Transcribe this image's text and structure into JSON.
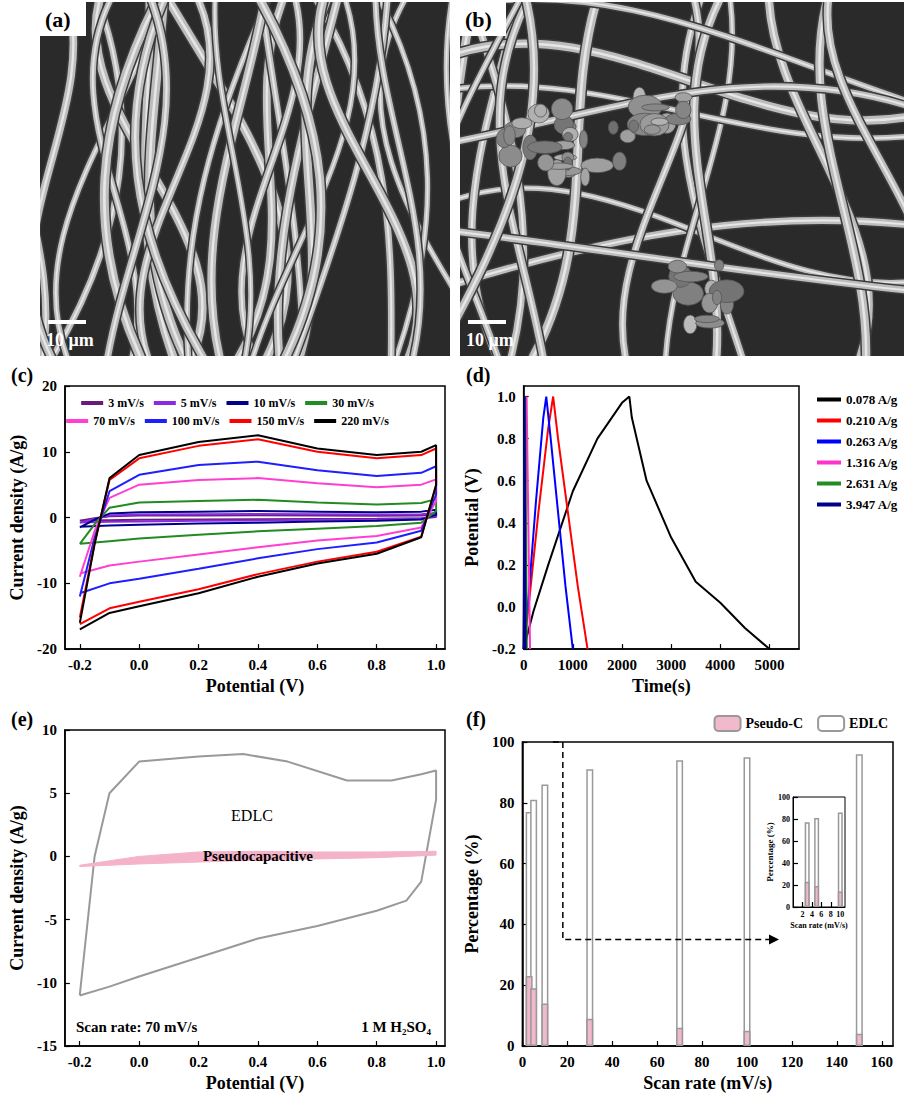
{
  "images": [
    {
      "label": "(a)",
      "scale_bar": "10 μm"
    },
    {
      "label": "(b)",
      "scale_bar": "10 μm"
    }
  ],
  "chart_data": [
    {
      "type": "line",
      "title": "(c)",
      "x_label": "Potential (V)",
      "y_label": "Current density (A/g)",
      "x": [
        -0.2,
        -0.15,
        -0.1,
        0,
        0.2,
        0.4,
        0.6,
        0.8,
        0.95,
        1.0,
        1.0,
        0.95,
        0.8,
        0.6,
        0.4,
        0.2,
        0,
        -0.1,
        -0.2
      ],
      "series": [
        {
          "name": "3 mV/s",
          "color": "#6a1b7a",
          "values": [
            -0.5,
            -0.1,
            0.2,
            0.3,
            0.32,
            0.35,
            0.3,
            0.28,
            0.3,
            0.45,
            0.1,
            -0.1,
            -0.2,
            -0.22,
            -0.27,
            -0.3,
            -0.35,
            -0.4,
            -0.45
          ]
        },
        {
          "name": "5 mV/s",
          "color": "#8a2be2",
          "values": [
            -0.8,
            -0.2,
            0.3,
            0.45,
            0.5,
            0.55,
            0.5,
            0.45,
            0.5,
            0.7,
            0.2,
            -0.15,
            -0.3,
            -0.35,
            -0.45,
            -0.5,
            -0.6,
            -0.65,
            -0.75
          ]
        },
        {
          "name": "10 mV/s",
          "color": "#00008b",
          "values": [
            -1.5,
            -0.3,
            0.6,
            0.8,
            0.9,
            1,
            0.9,
            0.8,
            0.9,
            1.2,
            0.4,
            -0.3,
            -0.5,
            -0.6,
            -0.8,
            -0.9,
            -1.1,
            -1.2,
            -1.4
          ]
        },
        {
          "name": "30 mV/s",
          "color": "#228b22",
          "values": [
            -4,
            -1,
            1.5,
            2.3,
            2.5,
            2.7,
            2.3,
            2,
            2.2,
            2.8,
            1,
            -0.8,
            -1.3,
            -1.7,
            -2.1,
            -2.6,
            -3.2,
            -3.6,
            -4
          ]
        },
        {
          "name": "70 mV/s",
          "color": "#ff3fd0",
          "values": [
            -9,
            -2,
            3,
            5,
            5.7,
            6,
            5.2,
            4.6,
            5,
            5.8,
            2.5,
            -1.5,
            -2.8,
            -3.5,
            -4.5,
            -5.6,
            -6.7,
            -7.3,
            -8.5
          ]
        },
        {
          "name": "100 mV/s",
          "color": "#1e1eff",
          "values": [
            -12,
            -3,
            4,
            6.5,
            8,
            8.5,
            7.2,
            6.3,
            6.8,
            7.8,
            3.5,
            -2,
            -3.8,
            -4.8,
            -6.2,
            -7.8,
            -9.3,
            -10,
            -11.5
          ]
        },
        {
          "name": "150 mV/s",
          "color": "#ff0000",
          "values": [
            -15.2,
            -3.8,
            5.7,
            9,
            10.9,
            11.9,
            10,
            9,
            9.5,
            10.5,
            4.8,
            -2.9,
            -5.2,
            -6.7,
            -8.6,
            -10.9,
            -12.8,
            -13.8,
            -16.2
          ]
        },
        {
          "name": "220 mV/s",
          "color": "#000000",
          "values": [
            -16,
            -4,
            6,
            9.5,
            11.5,
            12.5,
            10.5,
            9.5,
            10,
            11,
            5,
            -3,
            -5.5,
            -7,
            -9,
            -11.5,
            -13.5,
            -14.5,
            -17
          ]
        }
      ],
      "xlim": [
        -0.25,
        1.03
      ],
      "xticks": [
        -0.2,
        {
          "value": 0,
          "label": "0.0"
        },
        0.2,
        0.4,
        0.6,
        0.8,
        {
          "value": 1,
          "label": "1.0"
        }
      ],
      "ylim": [
        -20,
        20
      ],
      "yticks": [
        -20,
        -10,
        0,
        10,
        20
      ],
      "legend": "top",
      "grid": false
    },
    {
      "type": "line",
      "title": "(d)",
      "x_label": "Time(s)",
      "y_label": "Potential (V)",
      "series": [
        {
          "name": "0.078 A/g",
          "color": "#000000",
          "x": [
            0,
            200,
            500,
            1000,
            1500,
            2000,
            2150,
            2200,
            2500,
            3000,
            3500,
            4000,
            4500,
            5000
          ],
          "values": [
            -0.2,
            -0.02,
            0.2,
            0.55,
            0.8,
            0.97,
            1.0,
            0.9,
            0.6,
            0.33,
            0.12,
            0.02,
            -0.1,
            -0.2
          ]
        },
        {
          "name": "0.210 A/g",
          "color": "#ff0000",
          "x": [
            0,
            100,
            300,
            500,
            600,
            700,
            900,
            1100,
            1300
          ],
          "values": [
            -0.2,
            0,
            0.45,
            0.85,
            1.0,
            0.8,
            0.45,
            0.1,
            -0.2
          ]
        },
        {
          "name": "0.263 A/g",
          "color": "#0000ff",
          "x": [
            0,
            100,
            250,
            400,
            460,
            550,
            700,
            850,
            1000
          ],
          "values": [
            -0.2,
            0.05,
            0.5,
            0.9,
            1.0,
            0.8,
            0.45,
            0.1,
            -0.2
          ]
        },
        {
          "name": "1.316 A/g",
          "color": "#ff33cc",
          "x": [
            0,
            60,
            130
          ],
          "values": [
            -0.2,
            1.0,
            -0.2
          ]
        },
        {
          "name": "2.631 A/g",
          "color": "#228b22",
          "x": [
            0,
            30,
            65
          ],
          "values": [
            -0.2,
            1.0,
            -0.2
          ]
        },
        {
          "name": "3.947 A/g",
          "color": "#00008b",
          "x": [
            0,
            20,
            40
          ],
          "values": [
            -0.2,
            1.0,
            -0.2
          ]
        }
      ],
      "xlim": [
        0,
        5600
      ],
      "xticks": [
        0,
        1000,
        2000,
        3000,
        4000,
        5000
      ],
      "ylim": [
        -0.2,
        1.05
      ],
      "yticks": [
        -0.2,
        {
          "value": 0,
          "label": "0.0"
        },
        0.2,
        0.4,
        0.6,
        0.8,
        {
          "value": 1,
          "label": "1.0"
        }
      ],
      "legend": "right",
      "grid": false
    },
    {
      "type": "line",
      "title": "(e)",
      "x_label": "Potential (V)",
      "y_label": "Current density (A/g)",
      "annotations": [
        "Scan rate: 70 mV/s",
        "1 M H₂SO₄"
      ],
      "series": [
        {
          "name": "EDLC",
          "type": "line",
          "color": "#999999",
          "x": [
            -0.2,
            -0.15,
            -0.1,
            0,
            0.2,
            0.35,
            0.5,
            0.7,
            0.85,
            0.95,
            1.0,
            1.0,
            0.95,
            0.9,
            0.8,
            0.6,
            0.4,
            0.2,
            0,
            -0.1,
            -0.2
          ],
          "values": [
            -11,
            0,
            5,
            7.5,
            7.9,
            8.1,
            7.5,
            6,
            6,
            6.5,
            6.8,
            4.5,
            -2,
            -3.5,
            -4.3,
            -5.5,
            -6.5,
            -8,
            -9.5,
            -10.3,
            -11
          ]
        },
        {
          "name": "Pseudocapacitive",
          "type": "area",
          "color": "#f4b3c8",
          "x": [
            -0.2,
            0,
            0.2,
            0.4,
            0.6,
            0.8,
            1.0,
            1.0,
            0.8,
            0.6,
            0.4,
            0.2,
            0,
            -0.2
          ],
          "values": [
            -0.7,
            0,
            0.35,
            0.4,
            0.35,
            0.35,
            0.4,
            0.1,
            -0.1,
            -0.2,
            -0.3,
            -0.45,
            -0.6,
            -0.8
          ]
        }
      ],
      "xlim": [
        -0.25,
        1.03
      ],
      "xticks": [
        -0.2,
        {
          "value": 0,
          "label": "0.0"
        },
        0.2,
        0.4,
        0.6,
        0.8,
        {
          "value": 1,
          "label": "1.0"
        }
      ],
      "ylim": [
        -15,
        10
      ],
      "yticks": [
        -15,
        -10,
        -5,
        0,
        5,
        10
      ],
      "grid": false
    },
    {
      "type": "bar",
      "title": "(f)",
      "x_label": "Scan rate (mV/s)",
      "y_label": "Percentage (%)",
      "x": [
        3,
        5,
        10,
        30,
        70,
        100,
        150
      ],
      "series": [
        {
          "name": "Pseudo-C",
          "color": "#f2b8cb",
          "values": [
            23,
            19,
            14,
            9,
            6,
            5,
            4
          ]
        },
        {
          "name": "EDLC",
          "color": "#ffffff",
          "values": [
            77,
            81,
            86,
            91,
            94,
            95,
            96
          ]
        }
      ],
      "stacked": true,
      "xlim": [
        0,
        165
      ],
      "xticks": [
        0,
        20,
        40,
        60,
        80,
        100,
        120,
        140,
        160
      ],
      "ylim": [
        0,
        100
      ],
      "yticks": [
        0,
        20,
        40,
        60,
        80,
        100
      ],
      "legend": "top right",
      "grid": false
    },
    {
      "type": "bar",
      "x_label": "Scan rate (mV/s)",
      "y_label": "Percentage (%)",
      "x": [
        3,
        5,
        10
      ],
      "series": [
        {
          "name": "Pseudo-C",
          "color": "#f2b8cb",
          "values": [
            23,
            19,
            14
          ]
        },
        {
          "name": "EDLC",
          "color": "#ffffff",
          "values": [
            77,
            81,
            86
          ]
        }
      ],
      "stacked": true,
      "xlim": [
        0,
        11
      ],
      "xticks": [
        2,
        4,
        6,
        8,
        10
      ],
      "ylim": [
        0,
        100
      ],
      "yticks": [
        0,
        20,
        40,
        60,
        80,
        100
      ],
      "grid": false
    }
  ]
}
